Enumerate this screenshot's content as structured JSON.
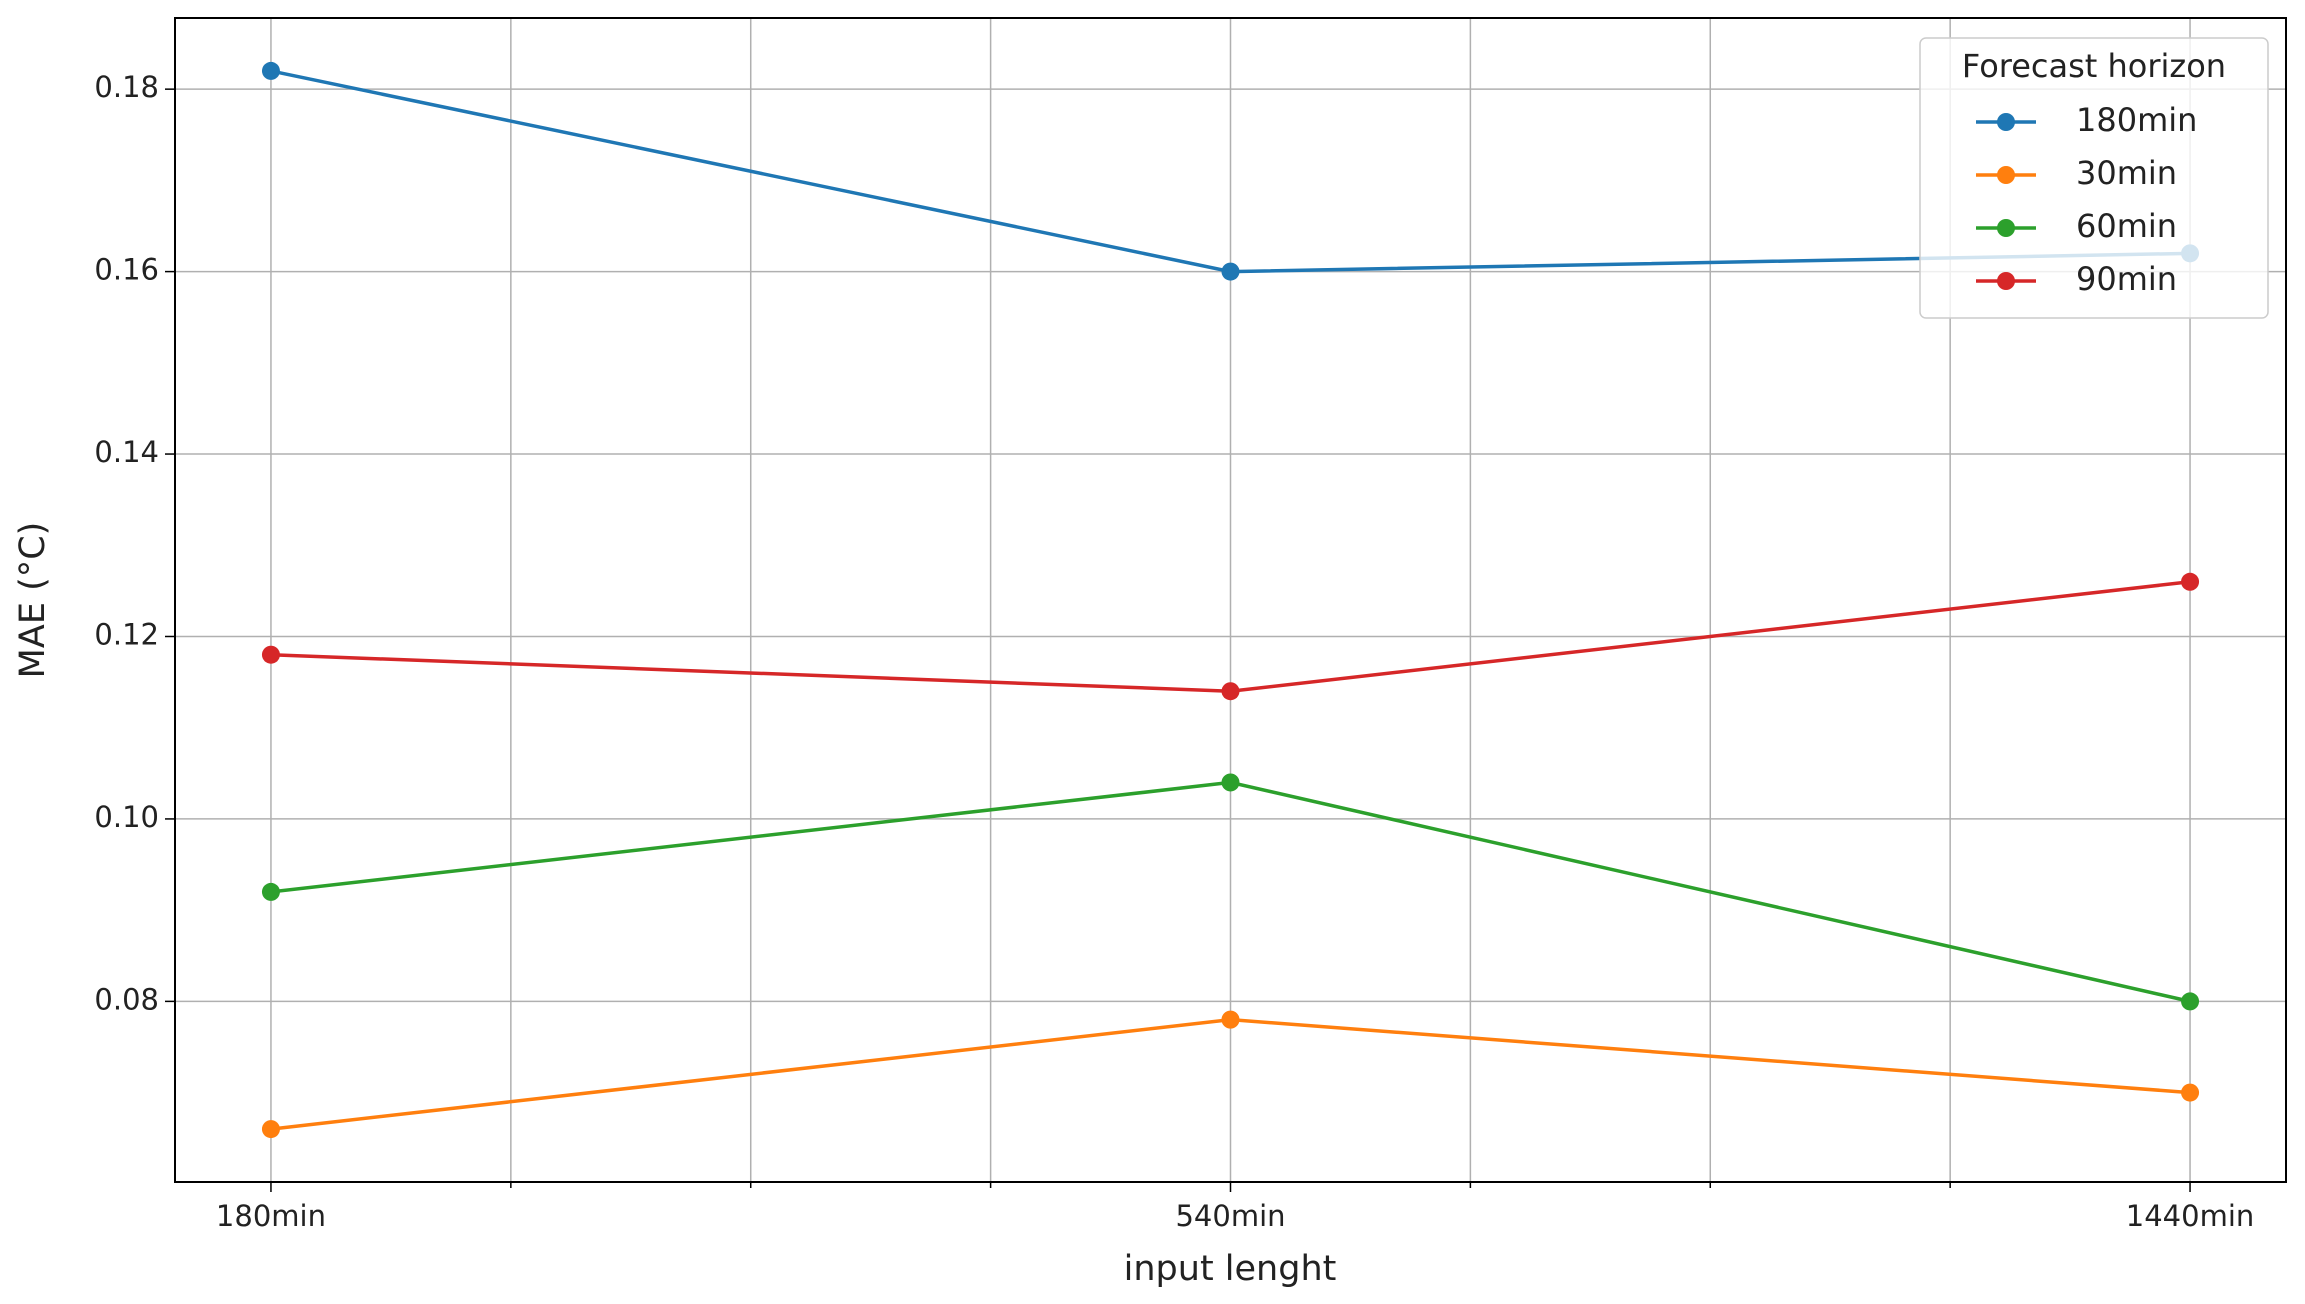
{
  "chart_data": {
    "type": "line",
    "xlabel": "input lenght",
    "ylabel": "MAE (°C)",
    "categories": [
      "180min",
      "540min",
      "1440min"
    ],
    "xlim": [
      -0.1,
      2.1
    ],
    "xminorticks": [
      0.25,
      0.5,
      0.75,
      1.25,
      1.5,
      1.75
    ],
    "ylim": [
      0.0602,
      0.1878
    ],
    "yticks": [
      0.08,
      {
        "value": 0.1,
        "label": "0.10"
      },
      0.12,
      0.14,
      0.16,
      0.18
    ],
    "grid": true,
    "legend_title": "Forecast horizon",
    "legend": "upper right",
    "series": [
      {
        "name": "180min",
        "color": "#1f77b4",
        "values": [
          0.182,
          0.16,
          0.162
        ]
      },
      {
        "name": "30min",
        "color": "#ff7f0e",
        "values": [
          0.066,
          0.078,
          0.07
        ]
      },
      {
        "name": "60min",
        "color": "#2ca02c",
        "values": [
          0.092,
          0.104,
          0.08
        ]
      },
      {
        "name": "90min",
        "color": "#d62728",
        "values": [
          0.118,
          0.114,
          0.126
        ]
      }
    ]
  }
}
